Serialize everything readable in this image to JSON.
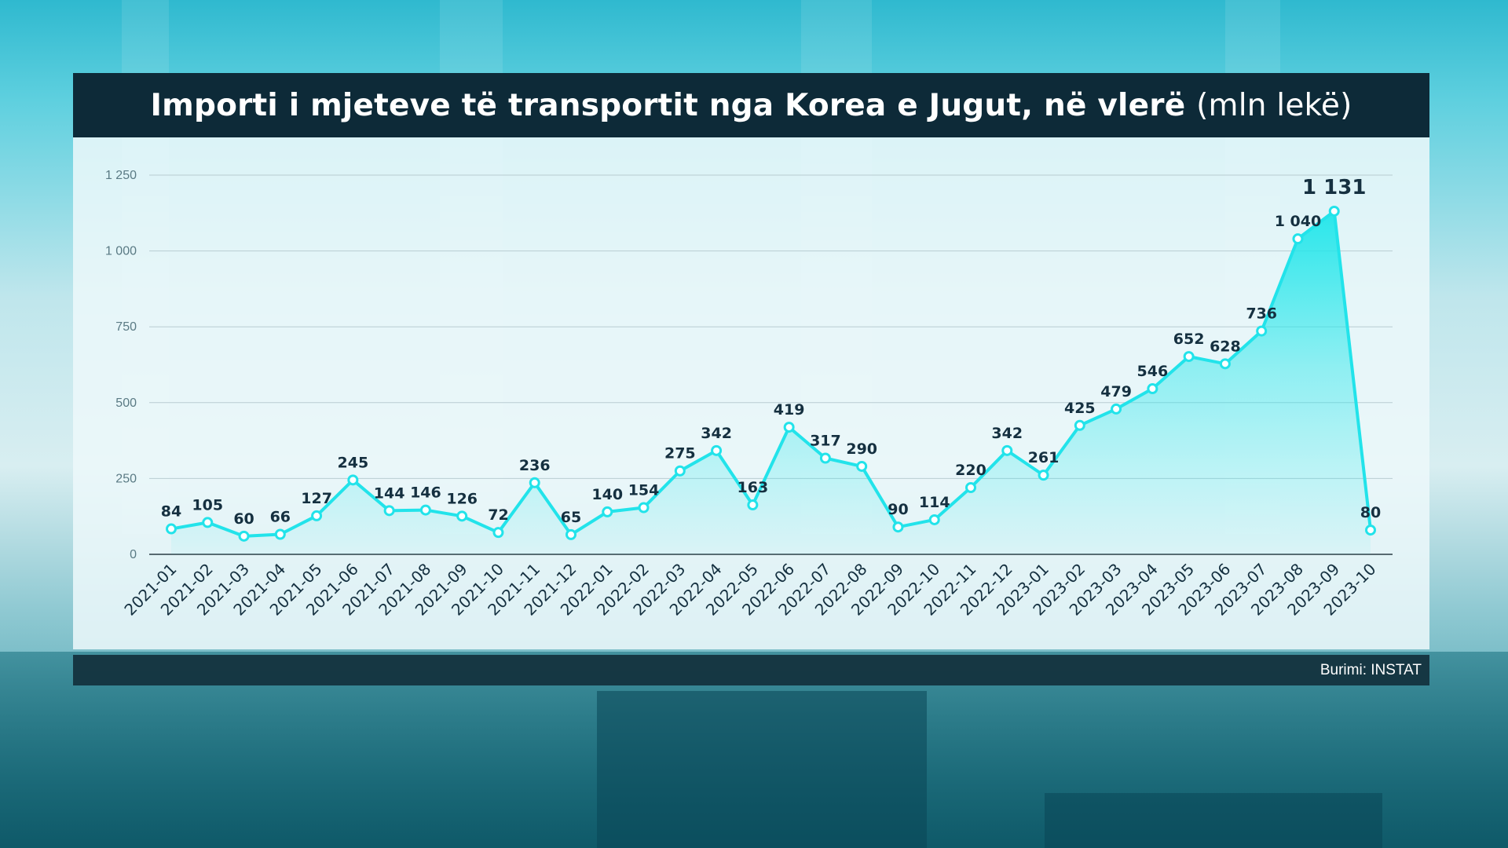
{
  "title": {
    "main": "Importi i mjeteve të transportit nga Korea e Jugut, në vlerë",
    "unit": "(mln lekë)"
  },
  "source": "Burimi: INSTAT",
  "colors": {
    "line": "#22e3ea",
    "area": "#20e6ea",
    "title_bg": "#0d2a38",
    "label": "#153040"
  },
  "chart_data": {
    "type": "area",
    "title": "Importi i mjeteve të transportit nga Korea e Jugut, në vlerë (mln lekë)",
    "xlabel": "",
    "ylabel": "",
    "ylim": [
      0,
      1250
    ],
    "yticks": [
      0,
      250,
      500,
      750,
      1000,
      1250
    ],
    "ytick_labels": [
      "0",
      "250",
      "500",
      "750",
      "1 000",
      "1 250"
    ],
    "grid": true,
    "categories": [
      "2021-01",
      "2021-02",
      "2021-03",
      "2021-04",
      "2021-05",
      "2021-06",
      "2021-07",
      "2021-08",
      "2021-09",
      "2021-10",
      "2021-11",
      "2021-12",
      "2022-01",
      "2022-02",
      "2022-03",
      "2022-04",
      "2022-05",
      "2022-06",
      "2022-07",
      "2022-08",
      "2022-09",
      "2022-10",
      "2022-11",
      "2022-12",
      "2023-01",
      "2023-02",
      "2023-03",
      "2023-04",
      "2023-05",
      "2023-06",
      "2023-07",
      "2023-08",
      "2023-09",
      "2023-10"
    ],
    "values": [
      84,
      105,
      60,
      66,
      127,
      245,
      144,
      146,
      126,
      72,
      236,
      65,
      140,
      154,
      275,
      342,
      163,
      419,
      317,
      290,
      90,
      114,
      220,
      342,
      261,
      425,
      479,
      546,
      652,
      628,
      736,
      1040,
      1131,
      80
    ],
    "value_labels": [
      "84",
      "105",
      "60",
      "66",
      "127",
      "245",
      "144",
      "146",
      "126",
      "72",
      "236",
      "65",
      "140",
      "154",
      "275",
      "342",
      "163",
      "419",
      "317",
      "290",
      "90",
      "114",
      "220",
      "342",
      "261",
      "425",
      "479",
      "546",
      "652",
      "628",
      "736",
      "1 040",
      "1 131",
      "80"
    ]
  }
}
